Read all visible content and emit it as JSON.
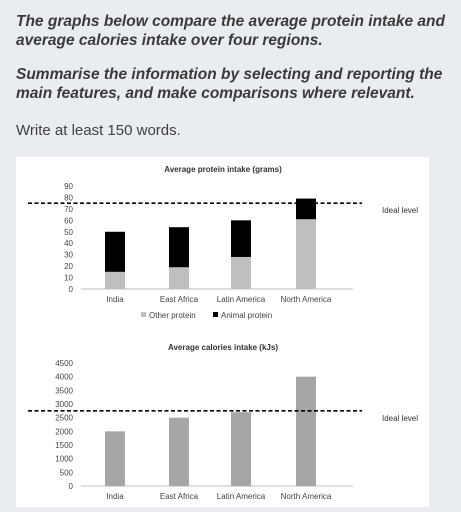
{
  "prompt": {
    "line1": "The graphs below compare the average protein intake and average calories intake over four regions.",
    "line2": "Summarise the information by selecting and reporting the main features, and make comparisons where relevant.",
    "instruction": "Write at least 150 words."
  },
  "chart_data": [
    {
      "type": "bar",
      "stacked": true,
      "title": "Average protein intake (grams)",
      "categories": [
        "India",
        "East Africa",
        "Latin America",
        "North America"
      ],
      "series": [
        {
          "name": "Other protein",
          "color": "#bfbfbf",
          "values": [
            15,
            19,
            28,
            61
          ]
        },
        {
          "name": "Animal protein",
          "color": "#000000",
          "values": [
            35,
            35,
            32,
            18
          ]
        }
      ],
      "ylim": [
        0,
        90
      ],
      "yticks": [
        0,
        10,
        20,
        30,
        40,
        50,
        60,
        70,
        80,
        90
      ],
      "reference_line": {
        "value": 75,
        "label": "Ideal level"
      },
      "legend": "bottom"
    },
    {
      "type": "bar",
      "title": "Average calories intake (kJs)",
      "categories": [
        "India",
        "East Africa",
        "Latin America",
        "North America"
      ],
      "series": [
        {
          "color": "#a6a6a6",
          "values": [
            2000,
            2500,
            2700,
            4000
          ]
        }
      ],
      "ylim": [
        0,
        4500
      ],
      "yticks": [
        0,
        500,
        1000,
        1500,
        2000,
        2500,
        3000,
        3500,
        4000,
        4500
      ],
      "reference_line": {
        "value": 2750,
        "label": "Ideal level"
      }
    }
  ]
}
